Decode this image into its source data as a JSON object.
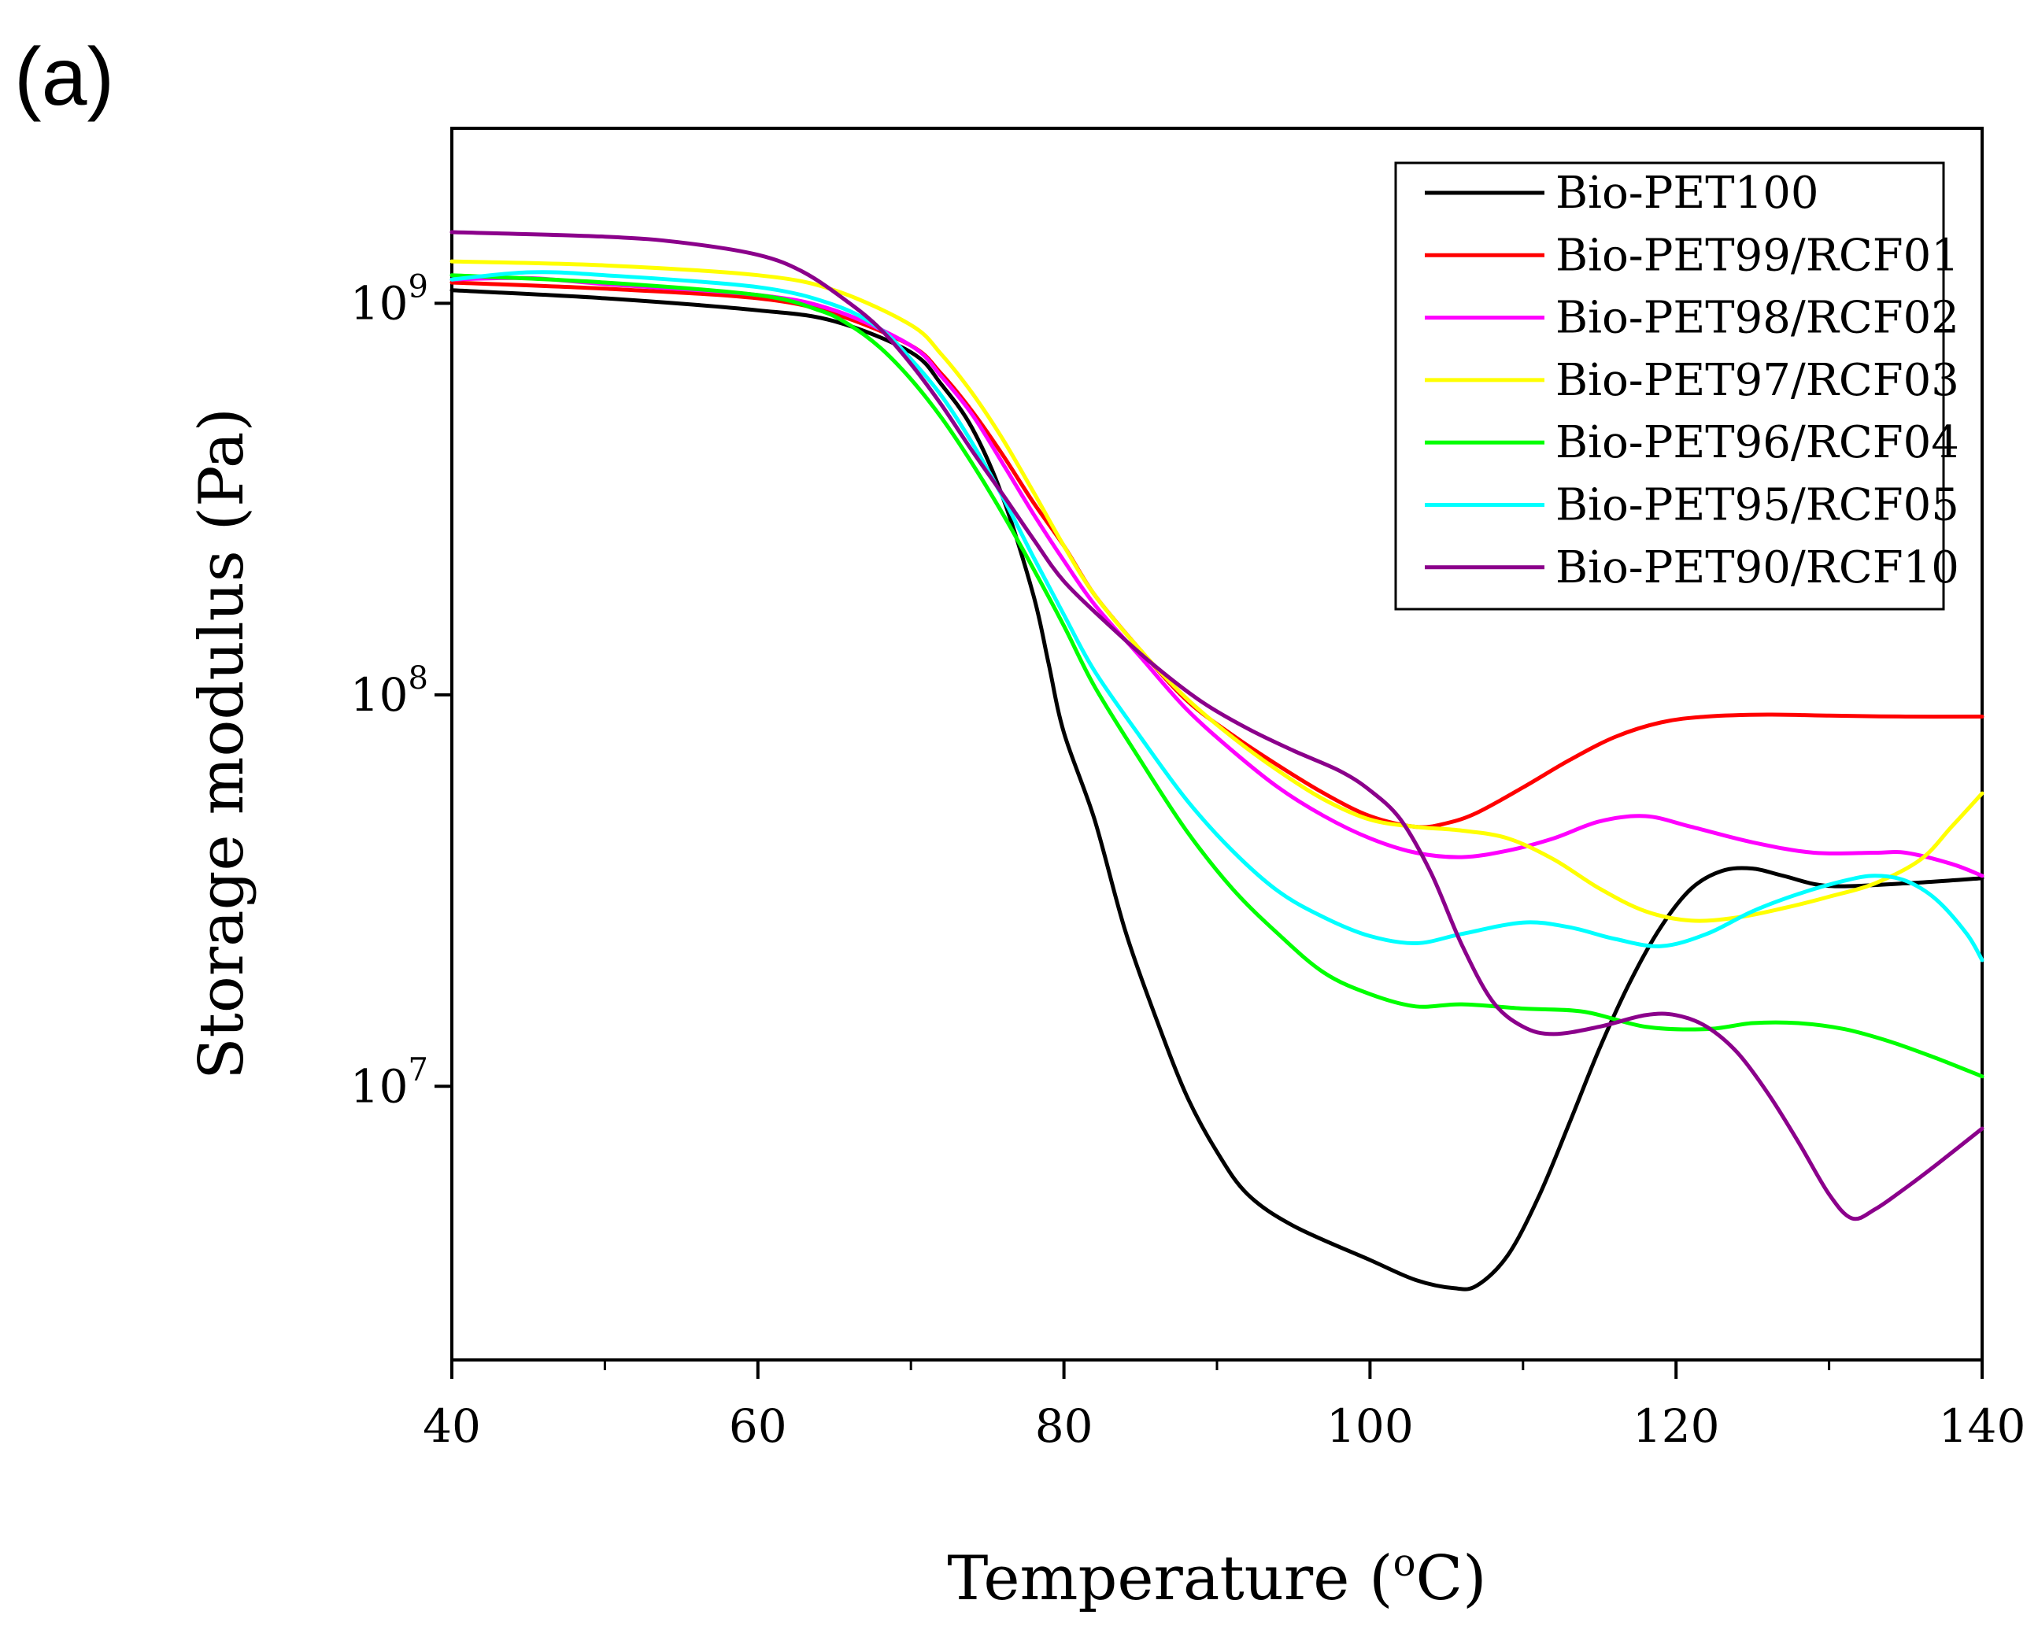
{
  "panel_label": "(a)",
  "chart_data": {
    "type": "line",
    "title": "",
    "xlabel": "Temperature (",
    "xlabel_degree": "o",
    "xlabel_unit": "C)",
    "ylabel": "Storage modulus (Pa)",
    "xlim": [
      40,
      140
    ],
    "ylim": [
      2000000,
      2800000000
    ],
    "yscale": "log",
    "x_ticks": [
      40,
      60,
      80,
      100,
      120,
      140
    ],
    "x_minor_ticks": [
      50,
      70,
      90,
      110,
      130
    ],
    "x_tick_labels": [
      "40",
      "60",
      "80",
      "100",
      "120",
      "140"
    ],
    "y_ticks": [
      {
        "value": 1000000000,
        "base": "10",
        "exp": "9"
      },
      {
        "value": 100000000,
        "base": "10",
        "exp": "8"
      },
      {
        "value": 10000000,
        "base": "10",
        "exp": "7"
      }
    ],
    "grid": false,
    "legend_position": "top-right",
    "series": [
      {
        "name": "Bio-PET100",
        "color": "#000000",
        "points": [
          [
            40,
            1080000000.0
          ],
          [
            50,
            1030000000.0
          ],
          [
            60,
            960000000.0
          ],
          [
            65,
            900000000.0
          ],
          [
            70,
            750000000.0
          ],
          [
            72,
            620000000.0
          ],
          [
            74,
            480000000.0
          ],
          [
            76,
            320000000.0
          ],
          [
            78,
            180000000.0
          ],
          [
            79,
            120000000.0
          ],
          [
            80,
            80000000.0
          ],
          [
            82,
            48000000.0
          ],
          [
            84,
            25000000.0
          ],
          [
            86,
            15000000.0
          ],
          [
            88,
            9500000.0
          ],
          [
            90,
            6800000.0
          ],
          [
            92,
            5300000.0
          ],
          [
            95,
            4400000.0
          ],
          [
            100,
            3600000.0
          ],
          [
            103,
            3200000.0
          ],
          [
            105.5,
            3050000.0
          ],
          [
            107,
            3100000.0
          ],
          [
            109,
            3700000.0
          ],
          [
            111,
            5200000.0
          ],
          [
            113,
            8000000.0
          ],
          [
            115,
            12500000.0
          ],
          [
            117,
            18500000.0
          ],
          [
            119,
            25500000.0
          ],
          [
            121,
            32000000.0
          ],
          [
            123,
            35500000.0
          ],
          [
            125,
            36000000.0
          ],
          [
            127,
            34500000.0
          ],
          [
            130,
            32500000.0
          ],
          [
            135,
            33000000.0
          ],
          [
            140,
            34000000.0
          ]
        ]
      },
      {
        "name": "Bio-PET99/RCF01",
        "color": "#ff0000",
        "points": [
          [
            40,
            1130000000.0
          ],
          [
            50,
            1090000000.0
          ],
          [
            60,
            1030000000.0
          ],
          [
            65,
            940000000.0
          ],
          [
            70,
            780000000.0
          ],
          [
            72,
            660000000.0
          ],
          [
            74,
            530000000.0
          ],
          [
            76,
            410000000.0
          ],
          [
            78,
            310000000.0
          ],
          [
            80,
            240000000.0
          ],
          [
            82,
            180000000.0
          ],
          [
            85,
            130000000.0
          ],
          [
            88,
            97000000.0
          ],
          [
            91,
            79000000.0
          ],
          [
            94,
            66000000.0
          ],
          [
            97,
            56000000.0
          ],
          [
            100,
            49000000.0
          ],
          [
            103,
            46000000.0
          ],
          [
            105,
            47000000.0
          ],
          [
            107,
            50000000.0
          ],
          [
            110,
            58000000.0
          ],
          [
            113,
            68000000.0
          ],
          [
            116,
            78000000.0
          ],
          [
            119,
            85000000.0
          ],
          [
            122,
            88000000.0
          ],
          [
            126,
            89000000.0
          ],
          [
            130,
            88500000.0
          ],
          [
            135,
            88000000.0
          ],
          [
            140,
            88000000.0
          ]
        ]
      },
      {
        "name": "Bio-PET98/RCF02",
        "color": "#ff00ff",
        "points": [
          [
            40,
            1150000000.0
          ],
          [
            45,
            1160000000.0
          ],
          [
            50,
            1120000000.0
          ],
          [
            60,
            1050000000.0
          ],
          [
            65,
            960000000.0
          ],
          [
            70,
            780000000.0
          ],
          [
            72,
            650000000.0
          ],
          [
            74,
            520000000.0
          ],
          [
            76,
            390000000.0
          ],
          [
            78,
            290000000.0
          ],
          [
            80,
            220000000.0
          ],
          [
            82,
            170000000.0
          ],
          [
            85,
            125000000.0
          ],
          [
            88,
            92000000.0
          ],
          [
            91,
            72000000.0
          ],
          [
            94,
            58000000.0
          ],
          [
            97,
            49000000.0
          ],
          [
            100,
            43000000.0
          ],
          [
            103,
            39500000.0
          ],
          [
            106,
            38500000.0
          ],
          [
            109,
            40000000.0
          ],
          [
            112,
            43000000.0
          ],
          [
            115,
            47500000.0
          ],
          [
            118,
            49000000.0
          ],
          [
            121,
            46000000.0
          ],
          [
            125,
            42000000.0
          ],
          [
            129,
            39500000.0
          ],
          [
            133,
            39500000.0
          ],
          [
            135,
            39500000.0
          ],
          [
            138,
            37000000.0
          ],
          [
            140,
            34500000.0
          ]
        ]
      },
      {
        "name": "Bio-PET97/RCF03",
        "color": "#ffff00",
        "points": [
          [
            40,
            1280000000.0
          ],
          [
            50,
            1250000000.0
          ],
          [
            60,
            1180000000.0
          ],
          [
            65,
            1080000000.0
          ],
          [
            70,
            880000000.0
          ],
          [
            72,
            740000000.0
          ],
          [
            74,
            590000000.0
          ],
          [
            76,
            450000000.0
          ],
          [
            78,
            330000000.0
          ],
          [
            80,
            240000000.0
          ],
          [
            82,
            180000000.0
          ],
          [
            85,
            130000000.0
          ],
          [
            88,
            98000000.0
          ],
          [
            91,
            78000000.0
          ],
          [
            94,
            64000000.0
          ],
          [
            97,
            54000000.0
          ],
          [
            100,
            48000000.0
          ],
          [
            103,
            46000000.0
          ],
          [
            106,
            45000000.0
          ],
          [
            109,
            43000000.0
          ],
          [
            112,
            38000000.0
          ],
          [
            115,
            32000000.0
          ],
          [
            118,
            28000000.0
          ],
          [
            121,
            26500000.0
          ],
          [
            124,
            27000000.0
          ],
          [
            127,
            28500000.0
          ],
          [
            130,
            30500000.0
          ],
          [
            133,
            33000000.0
          ],
          [
            136,
            38000000.0
          ],
          [
            138,
            46000000.0
          ],
          [
            140,
            56000000.0
          ]
        ]
      },
      {
        "name": "Bio-PET96/RCF04",
        "color": "#00ff00",
        "points": [
          [
            40,
            1180000000.0
          ],
          [
            50,
            1130000000.0
          ],
          [
            60,
            1050000000.0
          ],
          [
            64,
            960000000.0
          ],
          [
            66,
            880000000.0
          ],
          [
            68,
            770000000.0
          ],
          [
            70,
            640000000.0
          ],
          [
            72,
            510000000.0
          ],
          [
            74,
            390000000.0
          ],
          [
            76,
            290000000.0
          ],
          [
            78,
            210000000.0
          ],
          [
            80,
            150000000.0
          ],
          [
            82,
            105000000.0
          ],
          [
            85,
            68000000.0
          ],
          [
            88,
            45000000.0
          ],
          [
            91,
            32000000.0
          ],
          [
            94,
            24500000.0
          ],
          [
            97,
            19500000.0
          ],
          [
            100,
            17200000.0
          ],
          [
            103,
            16000000.0
          ],
          [
            106,
            16200000.0
          ],
          [
            110,
            15800000.0
          ],
          [
            114,
            15500000.0
          ],
          [
            118,
            14200000.0
          ],
          [
            122,
            14000000.0
          ],
          [
            125,
            14500000.0
          ],
          [
            128,
            14500000.0
          ],
          [
            131,
            14000000.0
          ],
          [
            134,
            13000000.0
          ],
          [
            137,
            11800000.0
          ],
          [
            140,
            10600000.0
          ]
        ]
      },
      {
        "name": "Bio-PET95/RCF05",
        "color": "#00ffff",
        "points": [
          [
            40,
            1150000000.0
          ],
          [
            45,
            1200000000.0
          ],
          [
            50,
            1180000000.0
          ],
          [
            60,
            1100000000.0
          ],
          [
            65,
            990000000.0
          ],
          [
            68,
            860000000.0
          ],
          [
            70,
            720000000.0
          ],
          [
            72,
            580000000.0
          ],
          [
            74,
            440000000.0
          ],
          [
            76,
            320000000.0
          ],
          [
            78,
            225000000.0
          ],
          [
            80,
            160000000.0
          ],
          [
            82,
            115000000.0
          ],
          [
            85,
            78000000.0
          ],
          [
            88,
            54000000.0
          ],
          [
            91,
            40000000.0
          ],
          [
            94,
            31500000.0
          ],
          [
            97,
            27000000.0
          ],
          [
            100,
            24200000.0
          ],
          [
            103,
            23200000.0
          ],
          [
            106,
            24500000.0
          ],
          [
            110,
            26200000.0
          ],
          [
            113,
            25500000.0
          ],
          [
            116,
            23800000.0
          ],
          [
            119,
            22800000.0
          ],
          [
            122,
            24500000.0
          ],
          [
            125,
            28000000.0
          ],
          [
            128,
            31000000.0
          ],
          [
            131,
            33500000.0
          ],
          [
            133,
            34500000.0
          ],
          [
            135,
            33500000.0
          ],
          [
            137,
            30000000.0
          ],
          [
            139,
            24500000.0
          ],
          [
            140,
            21000000.0
          ]
        ]
      },
      {
        "name": "Bio-PET90/RCF10",
        "color": "#8b008b",
        "points": [
          [
            40,
            1520000000.0
          ],
          [
            50,
            1480000000.0
          ],
          [
            55,
            1430000000.0
          ],
          [
            60,
            1330000000.0
          ],
          [
            63,
            1200000000.0
          ],
          [
            66,
            1000000000.0
          ],
          [
            68,
            860000000.0
          ],
          [
            70,
            700000000.0
          ],
          [
            72,
            550000000.0
          ],
          [
            74,
            420000000.0
          ],
          [
            76,
            325000000.0
          ],
          [
            78,
            250000000.0
          ],
          [
            80,
            195000000.0
          ],
          [
            83,
            150000000.0
          ],
          [
            86,
            118000000.0
          ],
          [
            89,
            96000000.0
          ],
          [
            92,
            82000000.0
          ],
          [
            95,
            72000000.0
          ],
          [
            98,
            64000000.0
          ],
          [
            100,
            57000000.0
          ],
          [
            102,
            48000000.0
          ],
          [
            104,
            35000000.0
          ],
          [
            106,
            23000000.0
          ],
          [
            108,
            16500000.0
          ],
          [
            110,
            14200000.0
          ],
          [
            112,
            13600000.0
          ],
          [
            115,
            14200000.0
          ],
          [
            118,
            15200000.0
          ],
          [
            120,
            15200000.0
          ],
          [
            122,
            14200000.0
          ],
          [
            124,
            12200000.0
          ],
          [
            126,
            9600000.0
          ],
          [
            128,
            7200000.0
          ],
          [
            130,
            5300000.0
          ],
          [
            131.5,
            4600000.0
          ],
          [
            133,
            4850000.0
          ],
          [
            135,
            5500000.0
          ],
          [
            137,
            6300000.0
          ],
          [
            140,
            7800000.0
          ]
        ]
      }
    ]
  }
}
